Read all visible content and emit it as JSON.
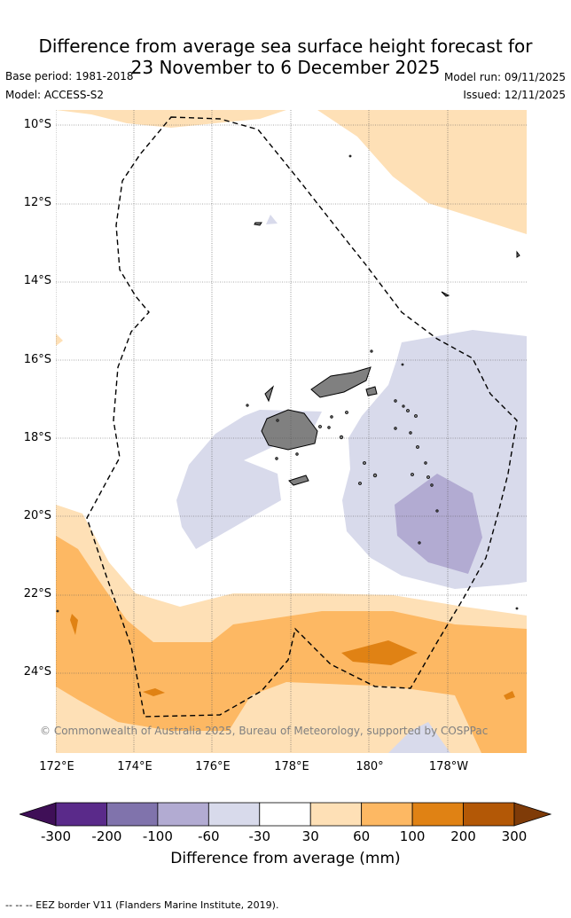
{
  "title_line1": "Difference from average sea surface height forecast for",
  "title_line2": "23 November to 6 December 2025",
  "base_period": "Base period: 1981-2018",
  "model": "Model: ACCESS-S2",
  "model_run": "Model run: 09/11/2025",
  "issued": "Issued: 12/11/2025",
  "lat_labels": [
    "10°S",
    "12°S",
    "14°S",
    "16°S",
    "18°S",
    "20°S",
    "22°S",
    "24°S"
  ],
  "lon_labels": [
    "172°E",
    "174°E",
    "176°E",
    "178°E",
    "180°",
    "178°W"
  ],
  "copyright": "© Commonwealth of Australia 2025, Bureau of Meteorology, supported by COSPPac",
  "colorbar": {
    "ticks": [
      "-300",
      "-200",
      "-100",
      "-60",
      "-30",
      "30",
      "60",
      "100",
      "200",
      "300"
    ],
    "colors": [
      "#3f0f57",
      "#5a2a8a",
      "#8073ac",
      "#b2abd2",
      "#d8daeb",
      "#ffffff",
      "#fee0b6",
      "#fdb863",
      "#e08214",
      "#b35806",
      "#7f3b08"
    ],
    "label": "Difference from average (mm)"
  },
  "footer": "-- -- -- EEZ border V11 (Flanders Marine Institute, 2019)."
}
